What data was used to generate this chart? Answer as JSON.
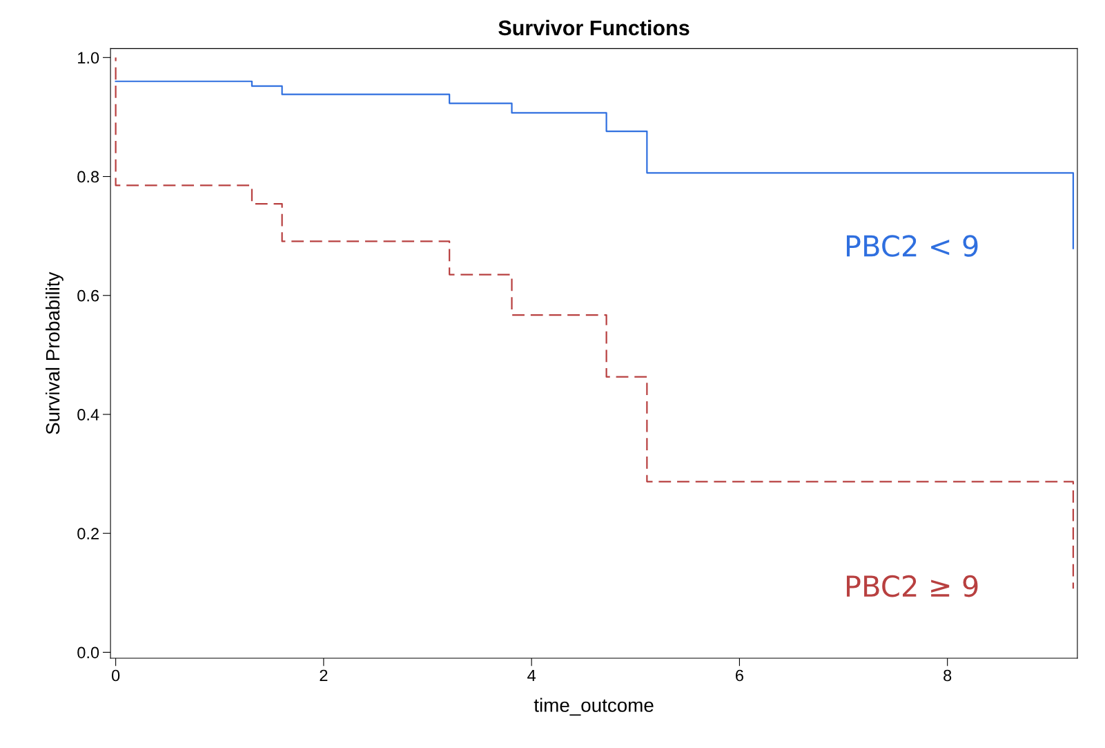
{
  "chart_data": {
    "type": "step",
    "title": "Survivor Functions",
    "xlabel": "time_outcome",
    "ylabel": "Survival Probability",
    "series": [
      {
        "name": "PBC2 < 9",
        "color": "#2f6fdf",
        "line_style": "solid",
        "x": [
          0,
          1.31,
          1.6,
          3.21,
          3.81,
          4.72,
          5.11,
          9.21
        ],
        "values": [
          0.96,
          0.952,
          0.938,
          0.923,
          0.907,
          0.876,
          0.806,
          0.679
        ]
      },
      {
        "name": "PBC2 ≥ 9",
        "color": "#b84040",
        "line_style": "dashed",
        "x": [
          0,
          0,
          1.31,
          1.6,
          3.21,
          3.81,
          4.72,
          5.11,
          9.21
        ],
        "values": [
          1.0,
          0.785,
          0.754,
          0.691,
          0.635,
          0.567,
          0.463,
          0.287,
          0.107
        ]
      }
    ],
    "xlim": [
      -0.05,
      9.25
    ],
    "ylim": [
      -0.01,
      1.015
    ],
    "xticks": [
      0,
      2,
      4,
      6,
      8
    ],
    "yticks": [
      {
        "value": 0,
        "label": "0.0"
      },
      {
        "value": 0.2,
        "label": "0.2"
      },
      {
        "value": 0.4,
        "label": "0.4"
      },
      {
        "value": 0.6,
        "label": "0.6"
      },
      {
        "value": 0.8,
        "label": "0.8"
      },
      {
        "value": 1.0,
        "label": "1.0"
      }
    ],
    "grid": false,
    "legend": false
  }
}
